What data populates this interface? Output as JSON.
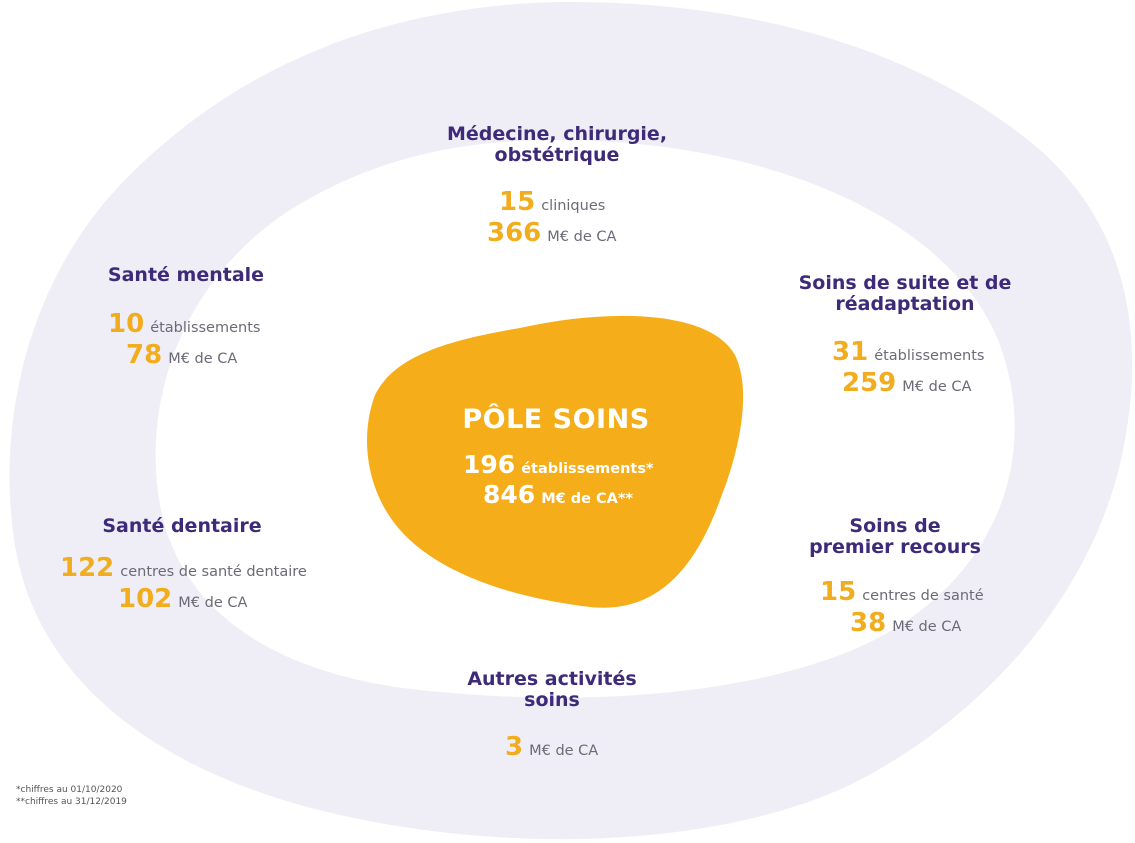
{
  "colors": {
    "outer_blob": "#efeef7",
    "inner_blob": "#ffffff",
    "center_blob": "#f5ae1a",
    "title": "#3d2a78",
    "number": "#f2ad1e",
    "unit": "#6b6b78"
  },
  "center": {
    "title": "PÔLE SOINS",
    "line1_num": "196",
    "line1_unit": "établissements*",
    "line2_num": "846",
    "line2_unit": "M€ de CA**"
  },
  "mco": {
    "title_line1": "Médecine, chirurgie,",
    "title_line2": "obstétrique",
    "s1_num": "15",
    "s1_unit": "cliniques",
    "s2_num": "366",
    "s2_unit": "M€ de CA"
  },
  "mental": {
    "title": "Santé mentale",
    "s1_num": "10",
    "s1_unit": "établissements",
    "s2_num": "78",
    "s2_unit": "M€ de CA"
  },
  "ssr": {
    "title_line1": "Soins de suite et de",
    "title_line2": "réadaptation",
    "s1_num": "31",
    "s1_unit": "établissements",
    "s2_num": "259",
    "s2_unit": "M€ de CA"
  },
  "dental": {
    "title": "Santé dentaire",
    "s1_num": "122",
    "s1_unit": "centres de santé dentaire",
    "s2_num": "102",
    "s2_unit": "M€ de CA"
  },
  "primary": {
    "title_line1": "Soins de",
    "title_line2": "premier recours",
    "s1_num": "15",
    "s1_unit": "centres de santé",
    "s2_num": "38",
    "s2_unit": "M€ de CA"
  },
  "other": {
    "title_line1": "Autres activités",
    "title_line2": "soins",
    "s1_num": "3",
    "s1_unit": "M€ de CA"
  },
  "footnotes": {
    "line1": "*chiffres au 01/10/2020",
    "line2": "**chiffres au 31/12/2019"
  }
}
